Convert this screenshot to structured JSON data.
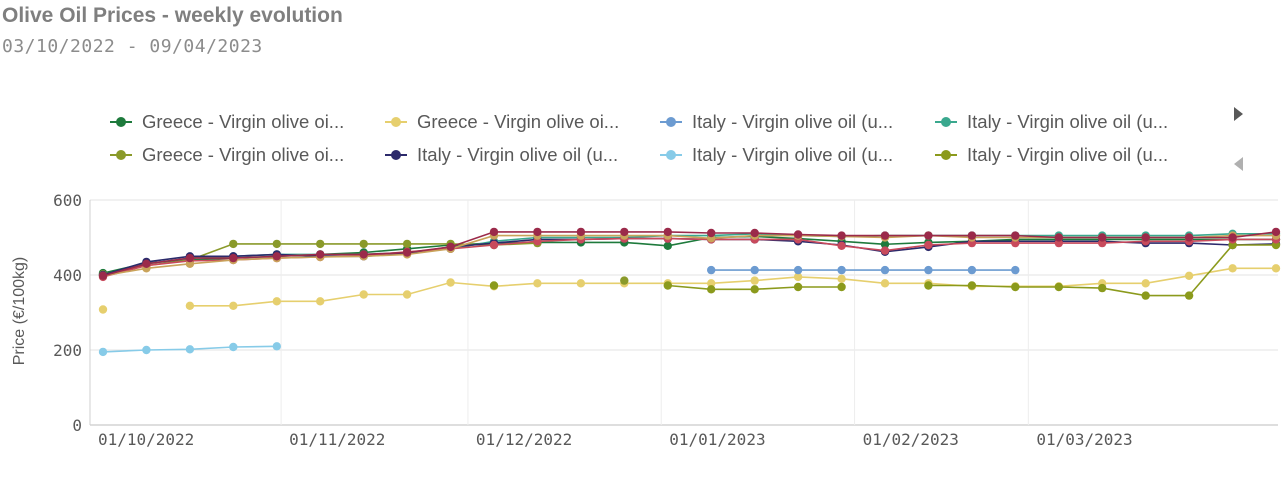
{
  "header": {
    "title": "Olive Oil Prices - weekly evolution",
    "subtitle": "03/10/2022 - 09/04/2023"
  },
  "legend": {
    "items": [
      {
        "label": "Greece - Virgin olive oi...",
        "color": "#1e7a3c"
      },
      {
        "label": "Greece - Virgin olive oi...",
        "color": "#e6cf6e"
      },
      {
        "label": "Italy - Virgin olive oil (u...",
        "color": "#6c9bd1"
      },
      {
        "label": "Italy - Virgin olive oil (u...",
        "color": "#3aa88e"
      },
      {
        "label": "Greece - Virgin olive oi...",
        "color": "#8a9a2a"
      },
      {
        "label": "Italy - Virgin olive oil (u...",
        "color": "#2c2a6b"
      },
      {
        "label": "Italy - Virgin olive oil (u...",
        "color": "#87cbe8"
      },
      {
        "label": "Italy - Virgin olive oil (u...",
        "color": "#8b9a1c"
      }
    ],
    "next_icon": "triangle-right",
    "prev_icon": "triangle-left"
  },
  "chart_data": {
    "type": "line",
    "ylabel": "Price (€/100kg)",
    "ylim": [
      0,
      600
    ],
    "yticks": [
      0,
      200,
      400,
      600
    ],
    "xticks": [
      "01/10/2022",
      "01/11/2022",
      "01/12/2022",
      "01/01/2023",
      "01/02/2023",
      "01/03/2023"
    ],
    "x": [
      "03/10/2022",
      "10/10/2022",
      "17/10/2022",
      "24/10/2022",
      "31/10/2022",
      "07/11/2022",
      "14/11/2022",
      "21/11/2022",
      "28/11/2022",
      "05/12/2022",
      "12/12/2022",
      "19/12/2022",
      "26/12/2022",
      "02/01/2023",
      "09/01/2023",
      "16/01/2023",
      "23/01/2023",
      "30/01/2023",
      "06/02/2023",
      "13/02/2023",
      "20/02/2023",
      "27/02/2023",
      "06/03/2023",
      "13/03/2023",
      "20/03/2023",
      "27/03/2023",
      "03/04/2023",
      "09/04/2023"
    ],
    "grid": true,
    "series": [
      {
        "color": "#1e7a3c",
        "values": [
          405,
          432,
          440,
          445,
          450,
          455,
          460,
          470,
          480,
          485,
          487,
          487,
          487,
          478,
          500,
          503,
          497,
          490,
          482,
          487,
          490,
          495,
          495,
          495,
          495,
          495,
          495,
          495
        ]
      },
      {
        "color": "#e6cf6e",
        "values": [
          308,
          null,
          318,
          318,
          330,
          330,
          348,
          348,
          380,
          370,
          378,
          378,
          378,
          378,
          378,
          385,
          395,
          390,
          378,
          378,
          370,
          370,
          370,
          378,
          378,
          398,
          418,
          418
        ]
      },
      {
        "color": "#6c9bd1",
        "values": [
          null,
          null,
          null,
          null,
          null,
          null,
          null,
          null,
          null,
          null,
          null,
          null,
          null,
          null,
          413,
          413,
          413,
          413,
          413,
          413,
          413,
          413,
          null,
          null,
          null,
          null,
          null,
          null
        ]
      },
      {
        "color": "#3aa88e",
        "values": [
          400,
          430,
          445,
          450,
          455,
          455,
          455,
          460,
          470,
          490,
          500,
          500,
          500,
          505,
          505,
          510,
          505,
          503,
          505,
          505,
          505,
          505,
          505,
          505,
          505,
          505,
          510,
          510
        ]
      },
      {
        "color": "#8a9a2a",
        "values": [
          402,
          425,
          440,
          483,
          483,
          483,
          483,
          483,
          483,
          480,
          485,
          null,
          385,
          null,
          null,
          null,
          null,
          null,
          null,
          null,
          null,
          null,
          null,
          null,
          null,
          null,
          null,
          null
        ]
      },
      {
        "color": "#2c2a6b",
        "values": [
          400,
          435,
          450,
          450,
          455,
          450,
          450,
          458,
          475,
          485,
          495,
          495,
          497,
          497,
          495,
          495,
          490,
          480,
          462,
          475,
          490,
          490,
          490,
          490,
          485,
          485,
          480,
          483
        ]
      },
      {
        "color": "#87cbe8",
        "values": [
          195,
          200,
          202,
          208,
          210,
          null,
          null,
          null,
          null,
          null,
          null,
          null,
          null,
          null,
          null,
          null,
          null,
          null,
          null,
          null,
          null,
          null,
          null,
          null,
          null,
          null,
          null,
          null
        ]
      },
      {
        "color": "#8b9a1c",
        "values": [
          null,
          null,
          null,
          null,
          null,
          null,
          null,
          null,
          null,
          372,
          null,
          null,
          null,
          372,
          362,
          362,
          368,
          368,
          null,
          372,
          372,
          368,
          368,
          365,
          345,
          345,
          480,
          480
        ]
      },
      {
        "color": "#c84a5c",
        "values": [
          395,
          425,
          438,
          440,
          445,
          448,
          452,
          462,
          470,
          480,
          490,
          495,
          497,
          497,
          495,
          495,
          495,
          478,
          465,
          480,
          485,
          485,
          485,
          485,
          490,
          490,
          495,
          495
        ]
      },
      {
        "color": "#c9a35a",
        "values": [
          398,
          418,
          430,
          440,
          445,
          448,
          450,
          455,
          470,
          505,
          505,
          505,
          505,
          505,
          498,
          505,
          505,
          503,
          500,
          505,
          500,
          500,
          500,
          500,
          500,
          500,
          505,
          505
        ]
      },
      {
        "color": "#9b2a4a",
        "values": [
          398,
          430,
          445,
          445,
          450,
          455,
          455,
          460,
          475,
          515,
          515,
          515,
          515,
          515,
          512,
          512,
          508,
          505,
          505,
          505,
          505,
          505,
          500,
          500,
          500,
          500,
          500,
          515
        ]
      }
    ]
  }
}
